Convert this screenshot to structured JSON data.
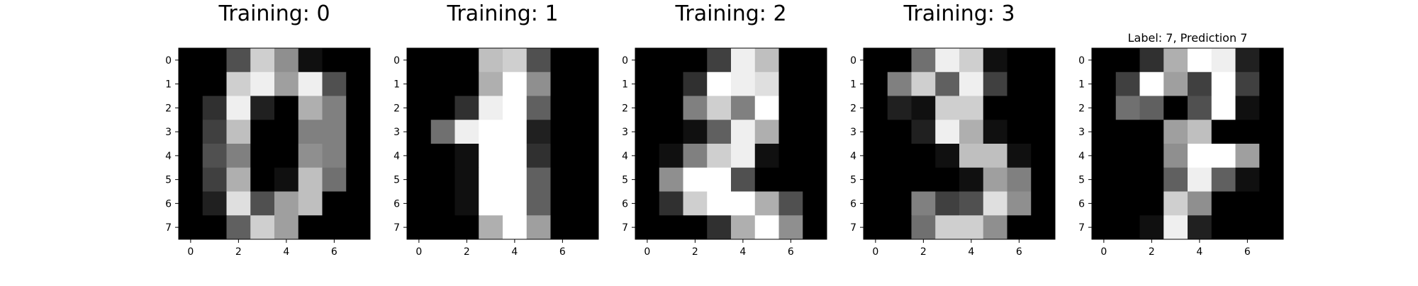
{
  "chart_data": [
    {
      "type": "heatmap",
      "title": "Training: 0",
      "colormap": "gray",
      "value_range": [
        0,
        16
      ],
      "x_ticks": [
        "0",
        "2",
        "4",
        "6"
      ],
      "y_ticks": [
        "0",
        "1",
        "2",
        "3",
        "4",
        "5",
        "6",
        "7"
      ],
      "values": [
        [
          0,
          0,
          5,
          13,
          9,
          1,
          0,
          0
        ],
        [
          0,
          0,
          13,
          15,
          10,
          15,
          5,
          0
        ],
        [
          0,
          3,
          15,
          2,
          0,
          11,
          8,
          0
        ],
        [
          0,
          4,
          12,
          0,
          0,
          8,
          8,
          0
        ],
        [
          0,
          5,
          8,
          0,
          0,
          9,
          8,
          0
        ],
        [
          0,
          4,
          11,
          0,
          1,
          12,
          7,
          0
        ],
        [
          0,
          2,
          14,
          5,
          10,
          12,
          0,
          0
        ],
        [
          0,
          0,
          6,
          13,
          10,
          0,
          0,
          0
        ]
      ]
    },
    {
      "type": "heatmap",
      "title": "Training: 1",
      "colormap": "gray",
      "value_range": [
        0,
        16
      ],
      "x_ticks": [
        "0",
        "2",
        "4",
        "6"
      ],
      "y_ticks": [
        "0",
        "1",
        "2",
        "3",
        "4",
        "5",
        "6",
        "7"
      ],
      "values": [
        [
          0,
          0,
          0,
          12,
          13,
          5,
          0,
          0
        ],
        [
          0,
          0,
          0,
          11,
          16,
          9,
          0,
          0
        ],
        [
          0,
          0,
          3,
          15,
          16,
          6,
          0,
          0
        ],
        [
          0,
          7,
          15,
          16,
          16,
          2,
          0,
          0
        ],
        [
          0,
          0,
          1,
          16,
          16,
          3,
          0,
          0
        ],
        [
          0,
          0,
          1,
          16,
          16,
          6,
          0,
          0
        ],
        [
          0,
          0,
          1,
          16,
          16,
          6,
          0,
          0
        ],
        [
          0,
          0,
          0,
          11,
          16,
          10,
          0,
          0
        ]
      ]
    },
    {
      "type": "heatmap",
      "title": "Training: 2",
      "colormap": "gray",
      "value_range": [
        0,
        16
      ],
      "x_ticks": [
        "0",
        "2",
        "4",
        "6"
      ],
      "y_ticks": [
        "0",
        "1",
        "2",
        "3",
        "4",
        "5",
        "6",
        "7"
      ],
      "values": [
        [
          0,
          0,
          0,
          4,
          15,
          12,
          0,
          0
        ],
        [
          0,
          0,
          3,
          16,
          15,
          14,
          0,
          0
        ],
        [
          0,
          0,
          8,
          13,
          8,
          16,
          0,
          0
        ],
        [
          0,
          0,
          1,
          6,
          15,
          11,
          0,
          0
        ],
        [
          0,
          1,
          8,
          13,
          15,
          1,
          0,
          0
        ],
        [
          0,
          9,
          16,
          16,
          5,
          0,
          0,
          0
        ],
        [
          0,
          3,
          13,
          16,
          16,
          11,
          5,
          0
        ],
        [
          0,
          0,
          0,
          3,
          11,
          16,
          9,
          0
        ]
      ]
    },
    {
      "type": "heatmap",
      "title": "Training: 3",
      "colormap": "gray",
      "value_range": [
        0,
        16
      ],
      "x_ticks": [
        "0",
        "2",
        "4",
        "6"
      ],
      "y_ticks": [
        "0",
        "1",
        "2",
        "3",
        "4",
        "5",
        "6",
        "7"
      ],
      "values": [
        [
          0,
          0,
          7,
          15,
          13,
          1,
          0,
          0
        ],
        [
          0,
          8,
          13,
          6,
          15,
          4,
          0,
          0
        ],
        [
          0,
          2,
          1,
          13,
          13,
          0,
          0,
          0
        ],
        [
          0,
          0,
          2,
          15,
          11,
          1,
          0,
          0
        ],
        [
          0,
          0,
          0,
          1,
          12,
          12,
          1,
          0
        ],
        [
          0,
          0,
          0,
          0,
          1,
          10,
          8,
          0
        ],
        [
          0,
          0,
          8,
          4,
          5,
          14,
          9,
          0
        ],
        [
          0,
          0,
          7,
          13,
          13,
          9,
          0,
          0
        ]
      ]
    },
    {
      "type": "heatmap",
      "title": "Label: 7, Prediction 7",
      "colormap": "gray",
      "value_range": [
        0,
        16
      ],
      "x_ticks": [
        "0",
        "2",
        "4",
        "6"
      ],
      "y_ticks": [
        "0",
        "1",
        "2",
        "3",
        "4",
        "5",
        "6",
        "7"
      ],
      "values": [
        [
          0,
          0,
          3,
          11,
          16,
          15,
          2,
          0
        ],
        [
          0,
          4,
          16,
          10,
          4,
          16,
          4,
          0
        ],
        [
          0,
          7,
          6,
          0,
          5,
          16,
          1,
          0
        ],
        [
          0,
          0,
          0,
          10,
          12,
          0,
          0,
          0
        ],
        [
          0,
          0,
          0,
          9,
          16,
          16,
          10,
          0
        ],
        [
          0,
          0,
          0,
          6,
          15,
          6,
          1,
          0
        ],
        [
          0,
          0,
          0,
          13,
          9,
          0,
          0,
          0
        ],
        [
          0,
          0,
          1,
          15,
          2,
          0,
          0,
          0
        ]
      ]
    }
  ]
}
